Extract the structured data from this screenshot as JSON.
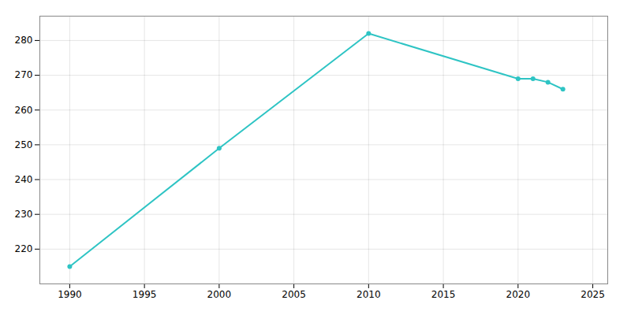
{
  "chart_data": {
    "type": "line",
    "x": [
      1990,
      2000,
      2010,
      2020,
      2021,
      2022,
      2023
    ],
    "values": [
      215,
      249,
      282,
      269,
      269,
      268,
      266
    ],
    "color": "#2EC4C4",
    "marker": "circle",
    "xlim": [
      1988,
      2026
    ],
    "xticks": [
      1990,
      1995,
      2000,
      2005,
      2010,
      2015,
      2020,
      2025
    ],
    "ylim": [
      210,
      287
    ],
    "yticks": [
      220,
      230,
      240,
      250,
      260,
      270,
      280
    ],
    "grid": true
  }
}
